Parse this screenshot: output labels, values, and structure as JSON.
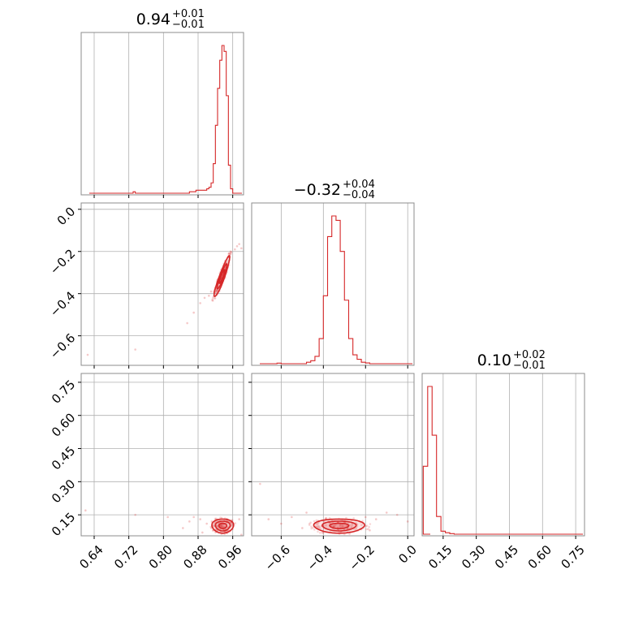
{
  "chart_data": {
    "type": "corner",
    "grid": true,
    "color": "#d62728",
    "parameters": [
      {
        "title": {
          "value": "0.94",
          "upper": "+0.01",
          "lower": "−0.01"
        }
      },
      {
        "title": {
          "value": "−0.32",
          "upper": "+0.04",
          "lower": "−0.04"
        }
      },
      {
        "title": {
          "value": "0.10",
          "upper": "+0.02",
          "lower": "−0.01"
        }
      }
    ],
    "ranges": [
      [
        0.61,
        0.985
      ],
      [
        -0.74,
        0.03
      ],
      [
        0.055,
        0.79
      ]
    ],
    "ticks": {
      "p1": {
        "values": [
          0.64,
          0.72,
          0.8,
          0.88,
          0.96
        ],
        "labels": [
          "0.64",
          "0.72",
          "0.80",
          "0.88",
          "0.96"
        ]
      },
      "p2": {
        "values": [
          -0.6,
          -0.4,
          -0.2,
          0.0
        ],
        "labels": [
          "−0.6",
          "−0.4",
          "−0.2",
          "0.0"
        ]
      },
      "p3": {
        "values": [
          0.15,
          0.3,
          0.45,
          0.6,
          0.75
        ],
        "labels": [
          "0.15",
          "0.30",
          "0.45",
          "0.60",
          "0.75"
        ]
      }
    },
    "histograms": [
      {
        "parameter": 1,
        "bin_width": 0.005,
        "bins": [
          [
            0.73,
            0.01
          ],
          [
            0.86,
            0.01
          ],
          [
            0.865,
            0.01
          ],
          [
            0.87,
            0.01
          ],
          [
            0.875,
            0.02
          ],
          [
            0.88,
            0.02
          ],
          [
            0.885,
            0.02
          ],
          [
            0.89,
            0.02
          ],
          [
            0.895,
            0.02
          ],
          [
            0.9,
            0.03
          ],
          [
            0.905,
            0.04
          ],
          [
            0.91,
            0.07
          ],
          [
            0.915,
            0.2
          ],
          [
            0.92,
            0.46
          ],
          [
            0.925,
            0.71
          ],
          [
            0.93,
            0.9
          ],
          [
            0.935,
            1.0
          ],
          [
            0.94,
            0.96
          ],
          [
            0.945,
            0.66
          ],
          [
            0.95,
            0.19
          ],
          [
            0.955,
            0.03
          ]
        ]
      },
      {
        "parameter": 2,
        "bin_width": 0.02,
        "bins": [
          [
            -0.62,
            0.004
          ],
          [
            -0.48,
            0.01
          ],
          [
            -0.46,
            0.02
          ],
          [
            -0.44,
            0.05
          ],
          [
            -0.42,
            0.17
          ],
          [
            -0.4,
            0.46
          ],
          [
            -0.38,
            0.86
          ],
          [
            -0.36,
            1.0
          ],
          [
            -0.34,
            0.97
          ],
          [
            -0.32,
            0.76
          ],
          [
            -0.3,
            0.43
          ],
          [
            -0.28,
            0.17
          ],
          [
            -0.26,
            0.06
          ],
          [
            -0.24,
            0.03
          ],
          [
            -0.22,
            0.01
          ],
          [
            -0.2,
            0.005
          ]
        ]
      },
      {
        "parameter": 3,
        "bin_width": 0.02,
        "bins": [
          [
            0.06,
            0.46
          ],
          [
            0.08,
            1.0
          ],
          [
            0.1,
            0.67
          ],
          [
            0.12,
            0.12
          ],
          [
            0.14,
            0.02
          ],
          [
            0.16,
            0.01
          ],
          [
            0.18,
            0.004
          ]
        ]
      }
    ],
    "samples_2d": [
      {
        "x_param": 1,
        "y_param": 2,
        "contours": [
          {
            "center": [
              0.935,
              -0.32
            ],
            "rx": 0.018,
            "ry": 0.1,
            "slope": 5.0
          },
          {
            "center": [
              0.935,
              -0.32
            ],
            "rx": 0.011,
            "ry": 0.062,
            "slope": 5.0
          },
          {
            "center": [
              0.935,
              -0.32
            ],
            "rx": 0.006,
            "ry": 0.034,
            "slope": 5.0
          }
        ],
        "outliers": [
          [
            0.625,
            -0.69
          ],
          [
            0.735,
            -0.665
          ],
          [
            0.855,
            -0.54
          ],
          [
            0.87,
            -0.49
          ],
          [
            0.885,
            -0.445
          ],
          [
            0.895,
            -0.42
          ],
          [
            0.905,
            -0.41
          ],
          [
            0.91,
            -0.39
          ],
          [
            0.955,
            -0.2
          ],
          [
            0.965,
            -0.19
          ],
          [
            0.97,
            -0.175
          ],
          [
            0.975,
            -0.165
          ],
          [
            0.98,
            -0.185
          ]
        ]
      },
      {
        "x_param": 1,
        "y_param": 3,
        "contours": [
          {
            "center": [
              0.937,
              0.1
            ],
            "rx": 0.025,
            "ry": 0.032,
            "slope": 0
          },
          {
            "center": [
              0.937,
              0.1
            ],
            "rx": 0.017,
            "ry": 0.022,
            "slope": 0
          },
          {
            "center": [
              0.937,
              0.1
            ],
            "rx": 0.009,
            "ry": 0.012,
            "slope": 0
          }
        ],
        "outliers": [
          [
            0.62,
            0.17
          ],
          [
            0.735,
            0.15
          ],
          [
            0.81,
            0.14
          ],
          [
            0.845,
            0.09
          ],
          [
            0.86,
            0.12
          ],
          [
            0.87,
            0.14
          ],
          [
            0.885,
            0.13
          ],
          [
            0.89,
            0.07
          ],
          [
            0.9,
            0.11
          ],
          [
            0.975,
            0.13
          ],
          [
            0.98,
            0.06
          ]
        ]
      },
      {
        "x_param": 2,
        "y_param": 3,
        "contours": [
          {
            "center": [
              -0.325,
              0.1
            ],
            "rx": 0.12,
            "ry": 0.032,
            "slope": 0
          },
          {
            "center": [
              -0.325,
              0.1
            ],
            "rx": 0.08,
            "ry": 0.022,
            "slope": 0
          },
          {
            "center": [
              -0.325,
              0.1
            ],
            "rx": 0.045,
            "ry": 0.012,
            "slope": 0
          }
        ],
        "outliers": [
          [
            -0.7,
            0.29
          ],
          [
            -0.66,
            0.13
          ],
          [
            -0.6,
            0.11
          ],
          [
            -0.55,
            0.14
          ],
          [
            -0.5,
            0.09
          ],
          [
            -0.48,
            0.16
          ],
          [
            -0.2,
            0.14
          ],
          [
            -0.18,
            0.08
          ],
          [
            -0.15,
            0.13
          ],
          [
            -0.1,
            0.16
          ],
          [
            -0.05,
            0.15
          ],
          [
            0.0,
            0.12
          ]
        ]
      }
    ]
  }
}
